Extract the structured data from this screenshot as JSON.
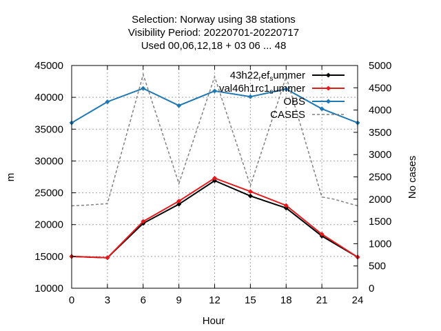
{
  "chart_data": {
    "type": "line",
    "title_lines": [
      "Selection: Norway using    38 stations",
      "Visibility   Period: 20220701-20220717",
      "Used  00,06,12,18  + 03 06 ... 48"
    ],
    "xlabel": "Hour",
    "ylabel": "m",
    "y2label": "No cases",
    "x": [
      0,
      3,
      6,
      9,
      12,
      15,
      18,
      21,
      24
    ],
    "xlim": [
      0,
      24
    ],
    "ylim": [
      10000,
      45000
    ],
    "y2lim": [
      0,
      5000
    ],
    "x_ticks": [
      0,
      3,
      6,
      9,
      12,
      15,
      18,
      21,
      24
    ],
    "y_ticks": [
      10000,
      15000,
      20000,
      25000,
      30000,
      35000,
      40000,
      45000
    ],
    "y2_ticks": [
      0,
      500,
      1000,
      1500,
      2000,
      2500,
      3000,
      3500,
      4000,
      4500,
      5000
    ],
    "grid": true,
    "legend_position": "top-right",
    "series": [
      {
        "name": "43h22_ref_summer",
        "label_parts": [
          "43h22",
          "r",
          "ef",
          "s",
          "ummer"
        ],
        "color": "#000000",
        "axis": "y",
        "style": "line-points",
        "values": [
          15000,
          14800,
          20200,
          23200,
          26900,
          24500,
          22600,
          18200,
          14900
        ]
      },
      {
        "name": "val46h1rc1_summer",
        "label_parts": [
          "val46h1rc1",
          "s",
          "ummer"
        ],
        "color": "#e41a1c",
        "axis": "y",
        "style": "line-points",
        "values": [
          15000,
          14800,
          20500,
          23700,
          27300,
          25200,
          23000,
          18500,
          14900
        ]
      },
      {
        "name": "OBS",
        "color": "#1f78b4",
        "axis": "y",
        "style": "line-points",
        "values": [
          36000,
          39300,
          41400,
          38700,
          41000,
          40100,
          41300,
          38200,
          36000
        ]
      },
      {
        "name": "CASES",
        "color": "#808080",
        "axis": "y2",
        "style": "dashed",
        "x": [
          0,
          1.5,
          3,
          6,
          9,
          12,
          15,
          18,
          21,
          22,
          24
        ],
        "values": [
          1850,
          1870,
          1900,
          4800,
          2350,
          4750,
          2300,
          4750,
          2050,
          2000,
          1850
        ]
      }
    ]
  }
}
